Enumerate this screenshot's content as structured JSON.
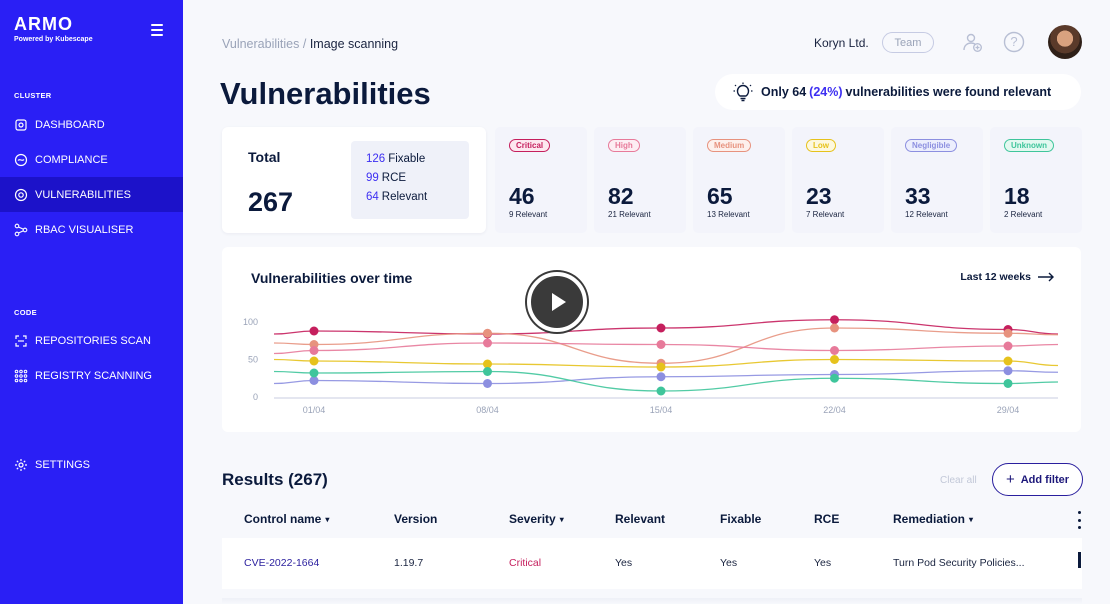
{
  "sidebar": {
    "logo": "ARMO",
    "logo_sub": "Powered by Kubescape",
    "sections": [
      {
        "title": "CLUSTER"
      },
      {
        "title": "CODE"
      }
    ],
    "items": [
      {
        "label": "DASHBOARD",
        "icon": "dashboard-icon"
      },
      {
        "label": "COMPLIANCE",
        "icon": "compliance-icon"
      },
      {
        "label": "VULNERABILITIES",
        "icon": "vulnerabilities-icon",
        "active": true
      },
      {
        "label": "RBAC VISUALISER",
        "icon": "rbac-icon"
      },
      {
        "label": "REPOSITORIES SCAN",
        "icon": "repository-icon"
      },
      {
        "label": "REGISTRY SCANNING",
        "icon": "registry-icon"
      },
      {
        "label": "SETTINGS",
        "icon": "settings-icon"
      }
    ],
    "colors": {
      "background": "#2a1ff5",
      "active": "#1c12c9"
    }
  },
  "header": {
    "breadcrumb": [
      "Vulnerabilities",
      "Image scanning"
    ],
    "breadcrumb_sep": "/",
    "org": "Koryn Ltd.",
    "team_badge": "Team",
    "help": "?"
  },
  "page_title": "Vulnerabilities",
  "insight": {
    "prefix": "Only 64",
    "pct": "(24%)",
    "suffix": "vulnerabilities were found relevant"
  },
  "total": {
    "label": "Total",
    "value": "267",
    "stats": [
      {
        "num": "126",
        "label": "Fixable"
      },
      {
        "num": "99",
        "label": "RCE"
      },
      {
        "num": "64",
        "label": "Relevant"
      }
    ]
  },
  "severities": [
    {
      "label": "Critical",
      "count": "46",
      "relevant": "9 Relevant",
      "color": "#c51f5d",
      "bg": "#fde7ef"
    },
    {
      "label": "High",
      "count": "82",
      "relevant": "21 Relevant",
      "color": "#e77a9a",
      "bg": "#fdeef3"
    },
    {
      "label": "Medium",
      "count": "65",
      "relevant": "13 Relevant",
      "color": "#e7927e",
      "bg": "#fdf0ec"
    },
    {
      "label": "Low",
      "count": "23",
      "relevant": "7 Relevant",
      "color": "#e6c21c",
      "bg": "#fdf8de"
    },
    {
      "label": "Negligible",
      "count": "33",
      "relevant": "12 Relevant",
      "color": "#8c8fe0",
      "bg": "#eceefd"
    },
    {
      "label": "Unknown",
      "count": "18",
      "relevant": "2 Relevant",
      "color": "#3fc59b",
      "bg": "#e3f8f0"
    }
  ],
  "chart": {
    "title": "Vulnerabilities over time",
    "range_label": "Last 12 weeks"
  },
  "chart_data": {
    "type": "line",
    "x": [
      "01/04",
      "08/04",
      "15/04",
      "22/04",
      "29/04"
    ],
    "ylim": [
      0,
      100
    ],
    "yticks": [
      0,
      50,
      100
    ],
    "grid": false,
    "series": [
      {
        "color": "#c51f5d",
        "values": [
          88,
          84,
          92,
          103,
          90
        ]
      },
      {
        "color": "#e7927e",
        "values": [
          70,
          85,
          45,
          92,
          85
        ]
      },
      {
        "color": "#e77a9a",
        "values": [
          62,
          72,
          70,
          62,
          68
        ]
      },
      {
        "color": "#e6c21c",
        "values": [
          48,
          44,
          40,
          50,
          48
        ]
      },
      {
        "color": "#8c8fe0",
        "values": [
          22,
          18,
          27,
          30,
          35
        ]
      },
      {
        "color": "#3fc59b",
        "values": [
          32,
          34,
          8,
          25,
          18
        ]
      }
    ]
  },
  "results": {
    "title": "Results (267)",
    "clear_all": "Clear all",
    "add_filter": "Add filter",
    "columns": [
      "Control name",
      "Version",
      "Severity",
      "Relevant",
      "Fixable",
      "RCE",
      "Remediation"
    ],
    "rows": [
      {
        "name": "CVE-2022-1664",
        "version": "1.19.7",
        "severity": "Critical",
        "relevant": "Yes",
        "fixable": "Yes",
        "rce": "Yes",
        "remediation": "Turn Pod Security Policies..."
      }
    ]
  }
}
